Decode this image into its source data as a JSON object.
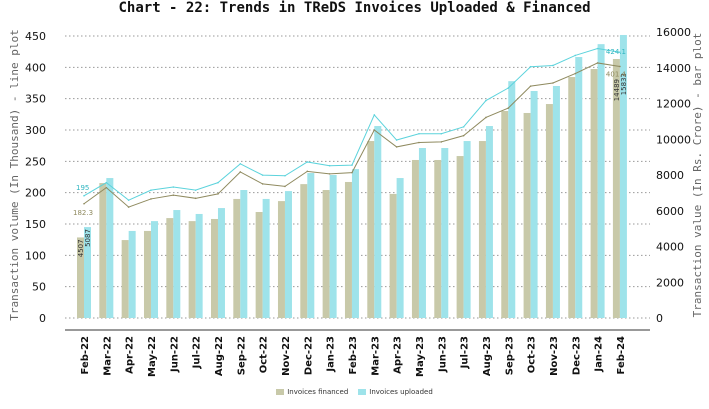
{
  "chart_data": {
    "type": "bar+line",
    "title": "Chart - 22: Trends in TReDS Invoices Uploaded & Financed",
    "ylabel_left": "Transaction volume (In Thousand) - line plot",
    "ylabel_right": "Transaction value (In Rs. Crore) - bar plot",
    "ylim_left": [
      0,
      450
    ],
    "yticks_left": [
      0,
      50,
      100,
      150,
      200,
      250,
      300,
      350,
      400,
      450
    ],
    "ylim_right": [
      0,
      16000
    ],
    "yticks_right": [
      0,
      2000,
      4000,
      6000,
      8000,
      10000,
      12000,
      14000,
      16000
    ],
    "grid": "horizontal dotted",
    "legend": "bottom",
    "categories": [
      "Feb-22",
      "Mar-22",
      "Apr-22",
      "May-22",
      "Jun-22",
      "Jul-22",
      "Aug-22",
      "Sep-22",
      "Oct-22",
      "Nov-22",
      "Dec-22",
      "Jan-23",
      "Feb-23",
      "Mar-23",
      "Apr-23",
      "May-23",
      "Jun-23",
      "Jul-23",
      "Aug-23",
      "Sep-23",
      "Oct-23",
      "Nov-23",
      "Dec-23",
      "Jan-24",
      "Feb-24"
    ],
    "series": [
      {
        "name": "Invoices financed",
        "kind": "bar",
        "axis": "right",
        "color": "#c8c9a9",
        "values": [
          4507,
          7550,
          4360,
          4870,
          5590,
          5420,
          5540,
          6660,
          5930,
          6540,
          7490,
          7160,
          7610,
          9900,
          6940,
          8840,
          8840,
          9060,
          9900,
          11580,
          11470,
          11970,
          13480,
          13930,
          14489
        ]
      },
      {
        "name": "Invoices uploaded",
        "kind": "bar",
        "axis": "right",
        "color": "#9ee3ea",
        "values": [
          5087,
          7830,
          4870,
          5420,
          6040,
          5820,
          6150,
          7160,
          6660,
          7100,
          8110,
          8000,
          8330,
          10740,
          7830,
          9510,
          9510,
          9900,
          10740,
          13250,
          12700,
          12980,
          14600,
          15320,
          15833
        ]
      },
      {
        "kind": "line",
        "axis": "left",
        "color": "#8f8a5f",
        "values": [
          182.3,
          208,
          177,
          190,
          196,
          191,
          198,
          233,
          214,
          210,
          234,
          230,
          232,
          300,
          273,
          280,
          281,
          291,
          320,
          335,
          370,
          375,
          390,
          407,
          401.4
        ]
      },
      {
        "kind": "line",
        "axis": "left",
        "color": "#5cd3dc",
        "values": [
          195,
          216,
          188,
          204,
          209,
          204,
          216,
          246,
          228,
          227,
          249,
          243,
          244,
          324,
          284,
          294,
          294,
          305,
          347,
          367,
          401,
          403,
          419,
          430,
          424.1
        ]
      }
    ],
    "data_labels": {
      "first_financed_bar": "4507",
      "first_uploaded_bar": "5087",
      "last_financed_bar": "14489",
      "last_uploaded_bar": "15833",
      "first_financed_line": "182.3",
      "first_uploaded_line": "195",
      "last_financed_line": "401.4",
      "last_uploaded_line": "424.1"
    }
  }
}
